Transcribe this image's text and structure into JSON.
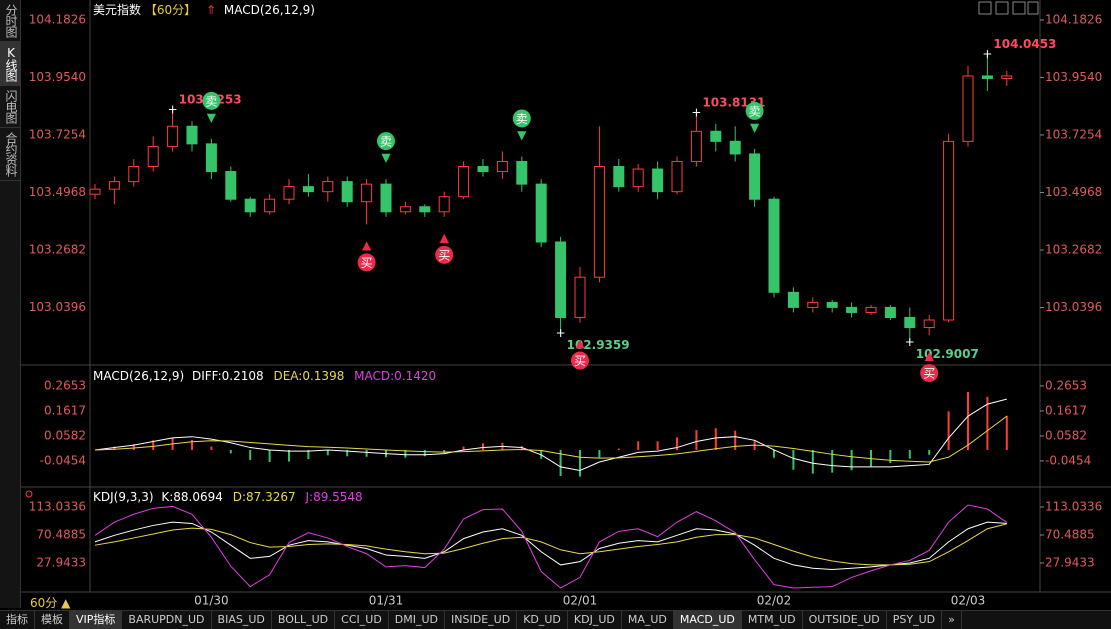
{
  "sidebar": [
    "分时图",
    "K线图",
    "闪电图",
    "合约资料"
  ],
  "period_button": "60分 ▲",
  "tabs": [
    "指标",
    "模板",
    "VIP指标",
    "BARUPDN_UD",
    "BIAS_UD",
    "BOLL_UD",
    "CCI_UD",
    "DMI_UD",
    "INSIDE_UD",
    "KD_UD",
    "KDJ_UD",
    "MA_UD",
    "MACD_UD",
    "MTM_UD",
    "OUTSIDE_UD",
    "PSY_UD",
    "»"
  ],
  "chart_data": [
    {
      "type": "candlestick",
      "title": "美元指数",
      "period": "【60分】",
      "indicator": "MACD(26,12,9)",
      "categories": [
        null,
        null,
        null,
        null,
        null,
        null,
        "01/30",
        null,
        null,
        null,
        null,
        null,
        null,
        null,
        null,
        "01/31",
        null,
        null,
        null,
        null,
        null,
        null,
        null,
        null,
        null,
        "02/01",
        null,
        null,
        null,
        null,
        null,
        null,
        null,
        null,
        null,
        "02/02",
        null,
        null,
        null,
        null,
        null,
        null,
        null,
        null,
        null,
        "02/03",
        null,
        null
      ],
      "open": [
        103.49,
        103.51,
        103.54,
        103.6,
        103.68,
        103.76,
        103.69,
        103.58,
        103.47,
        103.42,
        103.47,
        103.52,
        103.5,
        103.54,
        103.46,
        103.53,
        103.42,
        103.44,
        103.42,
        103.48,
        103.6,
        103.58,
        103.62,
        103.53,
        103.3,
        103.0,
        103.16,
        103.6,
        103.52,
        103.59,
        103.5,
        103.62,
        103.74,
        103.7,
        103.65,
        103.47,
        103.1,
        103.04,
        103.06,
        103.04,
        103.02,
        103.04,
        103.0,
        102.96,
        102.99,
        103.7,
        103.96,
        103.95
      ],
      "high": [
        103.53,
        103.56,
        103.63,
        103.72,
        103.8253,
        103.78,
        103.71,
        103.6,
        103.48,
        103.49,
        103.55,
        103.57,
        103.56,
        103.56,
        103.55,
        103.55,
        103.46,
        103.45,
        103.5,
        103.62,
        103.63,
        103.66,
        103.64,
        103.55,
        103.32,
        103.2,
        103.76,
        103.63,
        103.61,
        103.62,
        103.64,
        103.8131,
        103.77,
        103.76,
        103.67,
        103.48,
        103.12,
        103.08,
        103.07,
        103.06,
        103.05,
        103.05,
        103.04,
        103.01,
        103.73,
        104.0,
        104.0453,
        103.98
      ],
      "low": [
        103.47,
        103.45,
        103.52,
        103.58,
        103.66,
        103.66,
        103.55,
        103.46,
        103.4,
        103.41,
        103.45,
        103.48,
        103.46,
        103.44,
        103.37,
        103.4,
        103.41,
        103.4,
        103.4,
        103.47,
        103.56,
        103.55,
        103.5,
        103.28,
        102.9359,
        102.98,
        103.14,
        103.5,
        103.5,
        103.47,
        103.49,
        103.6,
        103.66,
        103.62,
        103.44,
        103.08,
        103.02,
        103.02,
        103.02,
        103.0,
        103.01,
        102.99,
        102.9007,
        102.93,
        102.98,
        103.68,
        103.9,
        103.92
      ],
      "close": [
        103.51,
        103.54,
        103.6,
        103.68,
        103.76,
        103.69,
        103.58,
        103.47,
        103.42,
        103.47,
        103.52,
        103.5,
        103.54,
        103.46,
        103.53,
        103.42,
        103.44,
        103.42,
        103.48,
        103.6,
        103.58,
        103.62,
        103.53,
        103.3,
        103.0,
        103.16,
        103.6,
        103.52,
        103.59,
        103.5,
        103.62,
        103.74,
        103.7,
        103.65,
        103.47,
        103.1,
        103.04,
        103.06,
        103.04,
        103.02,
        103.04,
        103.0,
        102.96,
        102.99,
        103.7,
        103.96,
        103.95,
        103.96
      ],
      "up_color": "#ff3b3b",
      "down_color": "#36c46a",
      "ylim": [
        102.831,
        104.23
      ],
      "yticks": [
        104.1826,
        {
          "value": 103.954,
          "label": "103.9540"
        },
        103.7254,
        103.4968,
        103.2682,
        103.0396
      ],
      "extremes": [
        {
          "index": 4,
          "value": 103.8253,
          "kind": "high"
        },
        {
          "index": 31,
          "value": 103.8131,
          "kind": "high"
        },
        {
          "index": 46,
          "value": 104.0453,
          "kind": "high"
        },
        {
          "index": 24,
          "value": 102.9359,
          "kind": "low"
        },
        {
          "index": 42,
          "value": 102.9007,
          "kind": "low"
        }
      ],
      "signals": [
        {
          "index": 6,
          "label": "卖",
          "kind": "sell"
        },
        {
          "index": 15,
          "label": "卖",
          "kind": "sell"
        },
        {
          "index": 22,
          "label": "卖",
          "kind": "sell"
        },
        {
          "index": 34,
          "label": "卖",
          "kind": "sell"
        },
        {
          "index": 14,
          "label": "买",
          "kind": "buy"
        },
        {
          "index": 18,
          "label": "买",
          "kind": "buy"
        },
        {
          "index": 25,
          "label": "买",
          "kind": "buy"
        },
        {
          "index": 43,
          "label": "买",
          "kind": "buy"
        }
      ]
    },
    {
      "type": "macd",
      "title": "MACD(26,12,9)",
      "series": [
        {
          "name": "DIFF:0.2108",
          "color": "#ffffff",
          "values": [
            0.0,
            0.01,
            0.02,
            0.035,
            0.05,
            0.055,
            0.045,
            0.03,
            0.01,
            0.0,
            -0.005,
            -0.005,
            0.0,
            -0.005,
            -0.01,
            -0.015,
            -0.02,
            -0.02,
            -0.015,
            0.0,
            0.01,
            0.015,
            0.01,
            -0.02,
            -0.07,
            -0.085,
            -0.05,
            -0.03,
            -0.01,
            -0.005,
            0.01,
            0.035,
            0.05,
            0.055,
            0.04,
            0.0,
            -0.035,
            -0.055,
            -0.065,
            -0.07,
            -0.07,
            -0.07,
            -0.065,
            -0.06,
            0.05,
            0.14,
            0.19,
            0.2108
          ]
        },
        {
          "name": "DEA:0.1398",
          "color": "#e8d84a",
          "values": [
            0.0,
            0.003,
            0.008,
            0.015,
            0.025,
            0.034,
            0.038,
            0.037,
            0.031,
            0.025,
            0.019,
            0.014,
            0.011,
            0.008,
            0.004,
            0.0,
            -0.004,
            -0.007,
            -0.009,
            -0.007,
            -0.004,
            0.0,
            0.002,
            -0.002,
            -0.016,
            -0.03,
            -0.034,
            -0.033,
            -0.028,
            -0.023,
            -0.016,
            -0.006,
            0.005,
            0.015,
            0.02,
            0.016,
            0.006,
            -0.006,
            -0.018,
            -0.028,
            -0.036,
            -0.043,
            -0.047,
            -0.05,
            -0.03,
            0.02,
            0.08,
            0.1398
          ]
        }
      ],
      "histogram": {
        "name": "MACD:0.1420",
        "color": "#e040e0",
        "up_color": "#ff3b3b",
        "down_color": "#36c46a",
        "values": [
          0,
          0.014,
          0.024,
          0.04,
          0.05,
          0.042,
          0.014,
          -0.014,
          -0.042,
          -0.05,
          -0.048,
          -0.038,
          -0.022,
          -0.026,
          -0.028,
          -0.03,
          -0.032,
          -0.026,
          -0.012,
          0.014,
          0.028,
          0.03,
          0.016,
          -0.036,
          -0.108,
          -0.11,
          -0.032,
          0.006,
          0.036,
          0.036,
          0.052,
          0.082,
          0.09,
          0.08,
          0.04,
          -0.032,
          -0.082,
          -0.098,
          -0.094,
          -0.084,
          -0.068,
          -0.054,
          -0.036,
          -0.02,
          0.16,
          0.24,
          0.22,
          0.142
        ]
      },
      "ylim": [
        -0.141,
        0.323
      ],
      "yticks": [
        0.2653,
        0.1617,
        0.0582,
        -0.0454
      ]
    },
    {
      "type": "kdj",
      "title": "KDJ(9,3,3)",
      "series": [
        {
          "name": "K:88.0694",
          "color": "#ffffff",
          "values": [
            60,
            70,
            78,
            85,
            90,
            88,
            75,
            55,
            35,
            38,
            55,
            62,
            60,
            55,
            50,
            40,
            38,
            35,
            45,
            65,
            75,
            80,
            70,
            45,
            25,
            30,
            50,
            58,
            62,
            60,
            70,
            80,
            78,
            72,
            55,
            35,
            25,
            20,
            18,
            20,
            22,
            25,
            28,
            35,
            60,
            80,
            90,
            88.0694
          ]
        },
        {
          "name": "D:87.3267",
          "color": "#e8d84a",
          "values": [
            55,
            60,
            66,
            72,
            78,
            81,
            79,
            71,
            59,
            52,
            53,
            56,
            57,
            56,
            54,
            49,
            45,
            42,
            43,
            50,
            58,
            65,
            67,
            60,
            48,
            42,
            45,
            49,
            53,
            56,
            60,
            67,
            71,
            71,
            66,
            56,
            46,
            37,
            31,
            27,
            25,
            25,
            26,
            30,
            45,
            62,
            80,
            87.3267
          ]
        },
        {
          "name": "J:89.5548",
          "color": "#e040e0",
          "values": [
            70,
            90,
            102,
            111,
            114,
            102,
            67,
            23,
            -8,
            10,
            59,
            74,
            66,
            53,
            42,
            22,
            24,
            21,
            49,
            95,
            109,
            110,
            76,
            15,
            -10,
            6,
            60,
            76,
            80,
            68,
            90,
            106,
            92,
            74,
            33,
            -5,
            -10,
            -9,
            -8,
            6,
            16,
            25,
            32,
            47,
            90,
            116,
            110,
            89.5548
          ]
        }
      ],
      "ylim": [
        -13.1,
        126.7
      ],
      "yticks": [
        113.0336,
        70.4885,
        27.9433
      ]
    }
  ]
}
